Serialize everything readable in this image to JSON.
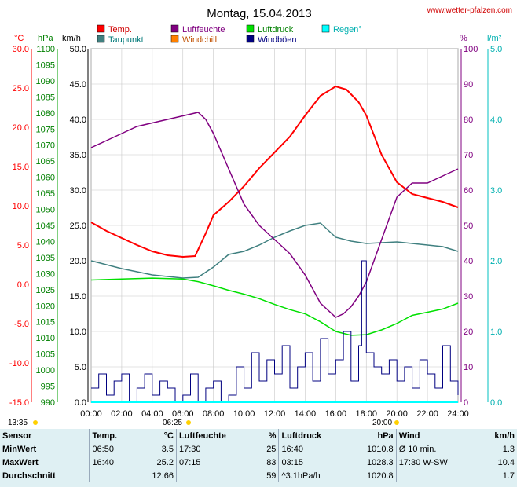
{
  "title": "Montag, 15.04.2013",
  "website": "www.wetter-pfalzen.com",
  "colors": {
    "temp": "#ff0000",
    "taupunkt": "#408080",
    "luftfeuchte": "#800080",
    "windchill": "#ff8000",
    "luftdruck": "#00e000",
    "windboen": "#000080",
    "regen": "#00ffff"
  },
  "units": {
    "temp": "°C",
    "pressure": "hPa",
    "wind": "km/h",
    "humidity": "%",
    "rain": "l/m²"
  },
  "legend": [
    {
      "label": "Temp.",
      "color": "#ff0000"
    },
    {
      "label": "Luftfeuchte",
      "color": "#800080"
    },
    {
      "label": "Luftdruck",
      "color": "#00e000"
    },
    {
      "label": "Regen°",
      "color": "#00ffff"
    },
    {
      "label": "Taupunkt",
      "color": "#408080"
    },
    {
      "label": "Windchill",
      "color": "#ff8000"
    },
    {
      "label": "Windböen",
      "color": "#000080"
    }
  ],
  "sun": {
    "sunrise": "06:25",
    "sunset": "20:00",
    "moon": "13:35"
  },
  "chart_data": {
    "type": "line",
    "x_label": "time",
    "x_ticks": [
      "00:00",
      "02:00",
      "04:00",
      "06:00",
      "08:00",
      "10:00",
      "12:00",
      "14:00",
      "16:00",
      "18:00",
      "20:00",
      "22:00",
      "24:00"
    ],
    "axes": {
      "temp": {
        "unit": "°C",
        "range": [
          -15,
          30
        ],
        "ticks": [
          "30.0",
          "25.0",
          "20.0",
          "15.0",
          "10.0",
          "5.0",
          "0.0",
          "-5.0",
          "-10.0",
          "-15.0"
        ]
      },
      "pressure": {
        "unit": "hPa",
        "range": [
          990,
          1100
        ],
        "ticks": [
          "1100",
          "1095",
          "1090",
          "1085",
          "1080",
          "1075",
          "1070",
          "1065",
          "1060",
          "1055",
          "1050",
          "1045",
          "1040",
          "1035",
          "1030",
          "1025",
          "1020",
          "1015",
          "1010",
          "1005",
          "1000",
          "995",
          "990"
        ]
      },
      "wind": {
        "unit": "km/h",
        "range": [
          0,
          50
        ],
        "ticks": [
          "50.0",
          "45.0",
          "40.0",
          "35.0",
          "30.0",
          "25.0",
          "20.0",
          "15.0",
          "10.0",
          "5.0",
          "0.0"
        ]
      },
      "humidity": {
        "unit": "%",
        "range": [
          0,
          100
        ],
        "ticks": [
          "100",
          "90",
          "80",
          "70",
          "60",
          "50",
          "40",
          "30",
          "20",
          "10",
          "0"
        ]
      },
      "rain": {
        "unit": "l/m²",
        "range": [
          0,
          5
        ],
        "ticks": [
          "5.0",
          "4.0",
          "3.0",
          "2.0",
          "1.0",
          "0.0"
        ]
      }
    },
    "series": [
      {
        "name": "Temp.",
        "axis": "temp",
        "x": [
          0,
          1,
          2,
          3,
          4,
          5,
          6,
          6.8,
          7.5,
          8,
          9,
          10,
          11,
          12,
          13,
          14,
          15,
          16,
          16.7,
          17.5,
          18,
          19,
          20,
          21,
          22,
          23,
          24
        ],
        "values": [
          7.9,
          6.8,
          5.9,
          5.0,
          4.2,
          3.7,
          3.5,
          3.6,
          6.5,
          8.8,
          10.5,
          12.5,
          14.8,
          16.8,
          18.8,
          21.5,
          24.0,
          25.2,
          24.8,
          23.2,
          21.5,
          16.5,
          13.0,
          11.5,
          11.0,
          10.5,
          9.8
        ]
      },
      {
        "name": "Taupunkt",
        "axis": "temp",
        "x": [
          0,
          1,
          2,
          3,
          4,
          5,
          6,
          7,
          8,
          9,
          10,
          11,
          12,
          13,
          14,
          15,
          16,
          17,
          18,
          19,
          20,
          21,
          22,
          23,
          24
        ],
        "values": [
          3.0,
          2.5,
          2.0,
          1.6,
          1.2,
          1.0,
          0.8,
          0.9,
          2.2,
          3.8,
          4.2,
          5.0,
          6.0,
          6.8,
          7.5,
          7.8,
          6.0,
          5.5,
          5.2,
          5.3,
          5.4,
          5.2,
          5.0,
          4.8,
          4.2
        ]
      },
      {
        "name": "Luftfeuchte",
        "axis": "humidity",
        "x": [
          0,
          1,
          2,
          3,
          4,
          5,
          6,
          7,
          7.5,
          8,
          9,
          10,
          11,
          12,
          13,
          14,
          15,
          16,
          16.5,
          17,
          17.5,
          18,
          19,
          20,
          21,
          22,
          23,
          24
        ],
        "values": [
          72,
          74,
          76,
          78,
          79,
          80,
          81,
          82,
          80,
          76,
          66,
          56,
          50,
          46,
          42,
          36,
          28,
          24,
          25,
          27,
          30,
          34,
          46,
          58,
          62,
          62,
          64,
          66
        ]
      },
      {
        "name": "Luftdruck",
        "axis": "pressure",
        "x": [
          0,
          2,
          4,
          6,
          7,
          8,
          9,
          10,
          11,
          12,
          13,
          14,
          15,
          16,
          17,
          18,
          19,
          20,
          21,
          22,
          23,
          24
        ],
        "values": [
          1028.0,
          1028.3,
          1028.6,
          1028.3,
          1027.5,
          1026.2,
          1024.8,
          1023.6,
          1022.2,
          1020.4,
          1018.8,
          1017.5,
          1015.0,
          1012.0,
          1010.8,
          1011.0,
          1012.5,
          1014.5,
          1017.0,
          1018.0,
          1019.0,
          1020.8
        ]
      },
      {
        "name": "Windböen",
        "axis": "wind",
        "x": [
          0,
          0.5,
          1,
          1.5,
          2,
          2.5,
          3,
          3.5,
          4,
          4.5,
          5,
          5.5,
          6,
          6.5,
          7,
          7.5,
          8,
          8.5,
          9,
          9.5,
          10,
          10.5,
          11,
          11.5,
          12,
          12.5,
          13,
          13.5,
          14,
          14.5,
          15,
          15.5,
          16,
          16.5,
          17,
          17.5,
          17.7,
          18,
          18.5,
          19,
          19.5,
          20,
          20.5,
          21,
          21.5,
          22,
          22.5,
          23,
          23.5,
          24
        ],
        "values": [
          2,
          4,
          1,
          3,
          4,
          0,
          2,
          4,
          1,
          3,
          2,
          0,
          1,
          4,
          0,
          2,
          3,
          0,
          1,
          5,
          2,
          7,
          3,
          6,
          4,
          8,
          2,
          5,
          7,
          3,
          9,
          4,
          6,
          10,
          3,
          8,
          20,
          7,
          5,
          4,
          6,
          3,
          5,
          2,
          6,
          4,
          2,
          8,
          3,
          1
        ]
      }
    ]
  },
  "table": {
    "headers": [
      "Sensor",
      "Temp.",
      "°C",
      "Luftfeuchte",
      "%",
      "Luftdruck",
      "hPa",
      "Wind",
      "km/h"
    ],
    "rows": [
      [
        "MinWert",
        "06:50",
        "3.5",
        "17:30",
        "25",
        "16:40",
        "1010.8",
        "Ø 10 min.",
        "1.3"
      ],
      [
        "MaxWert",
        "16:40",
        "25.2",
        "07:15",
        "83",
        "03:15",
        "1028.3",
        "17:30   W-SW",
        "10.4"
      ],
      [
        "Durchschnitt",
        "",
        "12.66",
        "",
        "59",
        "^3.1hPa/h",
        "1020.8",
        "",
        "1.7"
      ]
    ]
  }
}
